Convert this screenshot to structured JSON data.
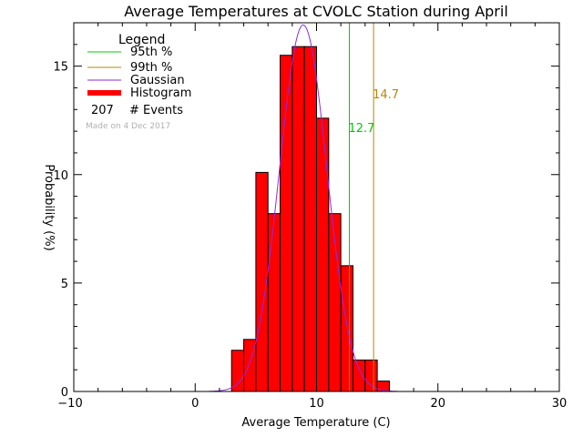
{
  "chart_data": {
    "type": "bar",
    "title": "Average Temperatures at CVOLC Station during April",
    "xlabel": "Average Temperature (C)",
    "ylabel": "Probability (%)",
    "xlim": [
      -10,
      30
    ],
    "ylim": [
      0,
      17
    ],
    "x_ticks": [
      -10,
      0,
      10,
      20,
      30
    ],
    "y_ticks": [
      0,
      5,
      10,
      15
    ],
    "bin_width": 1,
    "bins": [
      {
        "start": 3,
        "value": 1.9
      },
      {
        "start": 4,
        "value": 2.4
      },
      {
        "start": 5,
        "value": 10.1
      },
      {
        "start": 6,
        "value": 8.2
      },
      {
        "start": 7,
        "value": 15.5
      },
      {
        "start": 8,
        "value": 15.9
      },
      {
        "start": 9,
        "value": 15.9
      },
      {
        "start": 10,
        "value": 12.6
      },
      {
        "start": 11,
        "value": 8.2
      },
      {
        "start": 12,
        "value": 5.8
      },
      {
        "start": 13,
        "value": 1.45
      },
      {
        "start": 14,
        "value": 1.45
      },
      {
        "start": 15,
        "value": 0.48
      }
    ],
    "gaussian": {
      "mean": 8.9,
      "sigma": 1.95,
      "peak": 16.9
    },
    "percentile_lines": [
      {
        "name": "95th %",
        "value": 12.7,
        "label": "12.7",
        "color": "#00cc00"
      },
      {
        "name": "99th %",
        "value": 14.7,
        "label": "14.7",
        "color": "#b8860b"
      }
    ],
    "legend": {
      "title": "Legend",
      "entries": [
        {
          "label": "95th %",
          "color": "#00cc00",
          "kind": "line"
        },
        {
          "label": "99th %",
          "color": "#b8860b",
          "kind": "line"
        },
        {
          "label": "Gaussian",
          "color": "#8a2be2",
          "kind": "line"
        },
        {
          "label": "Histogram",
          "color": "#ff0000",
          "kind": "thick"
        }
      ],
      "events_count": "207",
      "events_label": "# Events",
      "made_on": "Made on 4 Dec 2017"
    },
    "colors": {
      "histogram_fill": "#ff0000",
      "histogram_edge": "#000000",
      "gaussian": "#8a2be2",
      "p95": "#00cc00",
      "p99": "#b8860b",
      "made_on": "#b0b0b0"
    }
  }
}
